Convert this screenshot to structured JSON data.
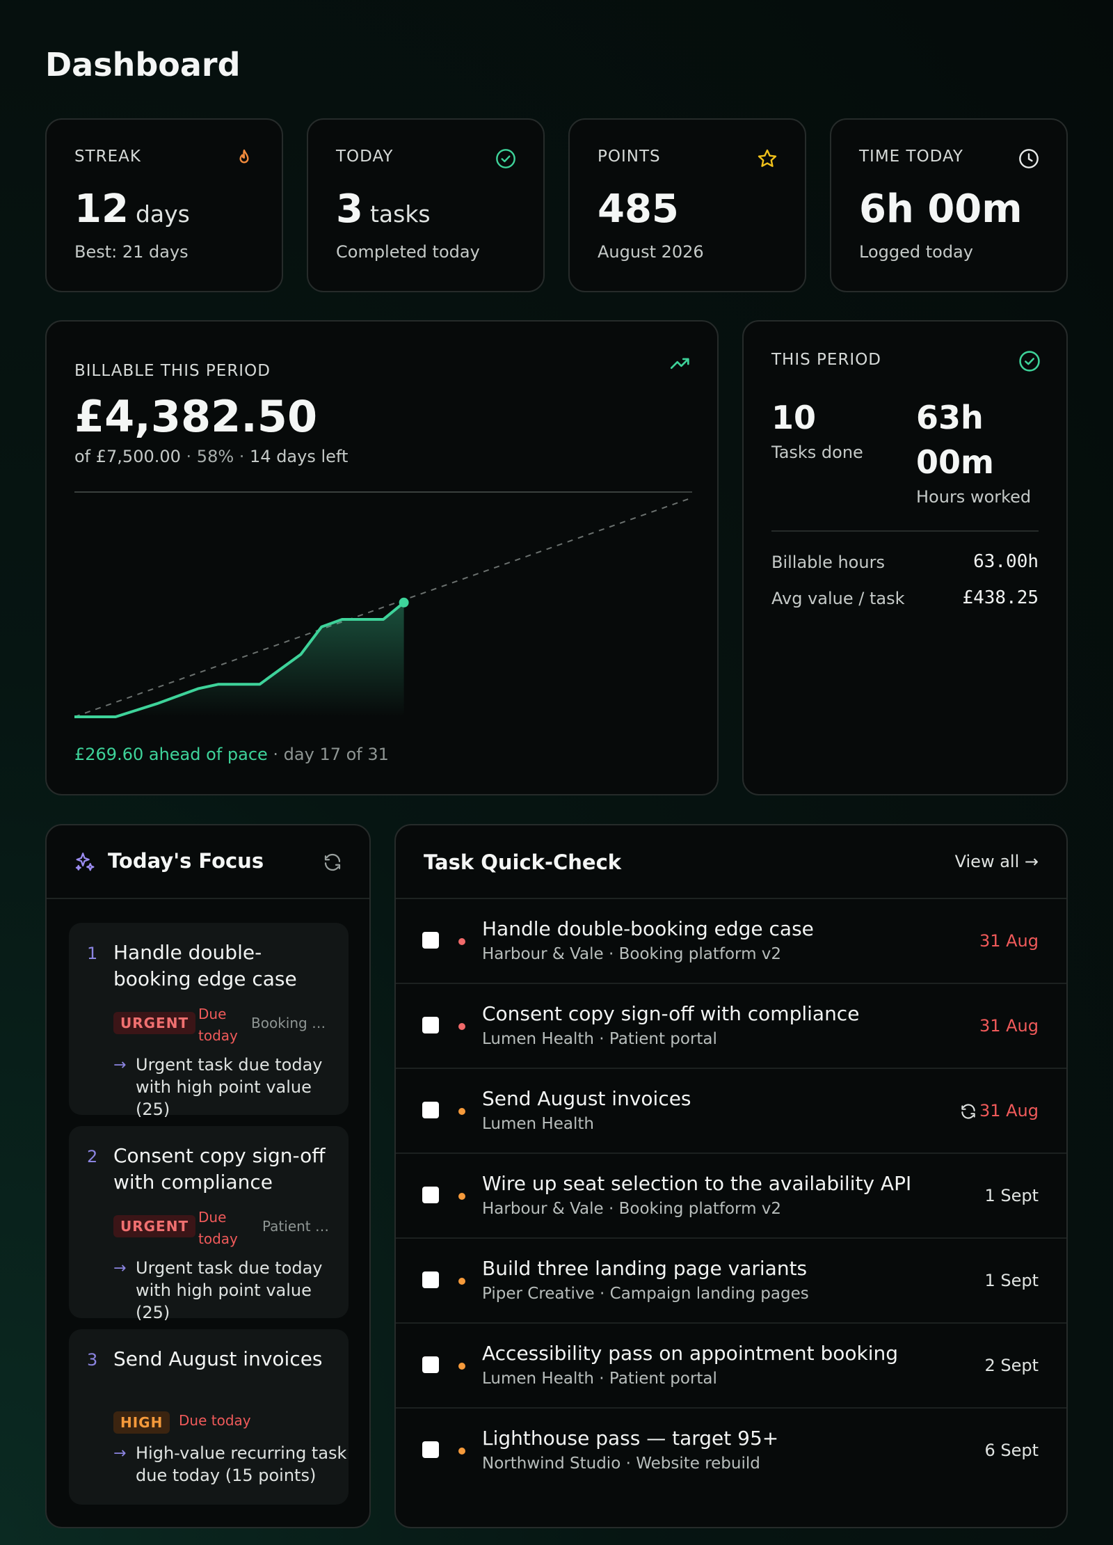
{
  "page": {
    "title": "Dashboard"
  },
  "stats": [
    {
      "label": "STREAK",
      "value": "12",
      "unit": "days",
      "sub": "Best: 21 days",
      "icon": "flame-icon",
      "icon_color": "#f08a3c"
    },
    {
      "label": "TODAY",
      "value": "3",
      "unit": "tasks",
      "sub": "Completed today",
      "icon": "check-circle-icon",
      "icon_color": "#3ed39a"
    },
    {
      "label": "POINTS",
      "value": "485",
      "unit": "",
      "sub": "August 2026",
      "icon": "star-icon",
      "icon_color": "#f2c21b"
    },
    {
      "label": "TIME TODAY",
      "value": "6h 00m",
      "unit": "",
      "sub": "Logged today",
      "icon": "clock-icon",
      "icon_color": "#e8ebea"
    }
  ],
  "billable": {
    "label": "BILLABLE THIS PERIOD",
    "amount": "£4,382.50",
    "target_text": "of £7,500.00",
    "sep1": " · ",
    "percent_text": "58%",
    "sep2": " · ",
    "days_left_text": "14 days left",
    "ahead_text": "£269.60 ahead of pace",
    "day_text": " · day 17 of 31",
    "icon": "trending-up-icon",
    "accent": "#3ed39a"
  },
  "chart_data": {
    "type": "line",
    "x": [
      1,
      3,
      5,
      7,
      8,
      9,
      10,
      11,
      12,
      13,
      14,
      15,
      16,
      17
    ],
    "values": [
      0,
      0,
      350,
      750,
      870,
      870,
      870,
      1270,
      1670,
      2400,
      2600,
      2600,
      2600,
      3050
    ],
    "pace_line": {
      "from_day": 1,
      "to_day": 31,
      "from_value": 0,
      "to_value": 5850
    },
    "xlim": [
      1,
      31
    ],
    "ylim": [
      0,
      6000
    ],
    "grid": false,
    "series_color": "#3ed39a"
  },
  "period": {
    "label": "THIS PERIOD",
    "icon": "check-circle-icon",
    "tasks_done_value": "10",
    "tasks_done_label": "Tasks done",
    "hours_value_line1": "63h",
    "hours_value_line2": "00m",
    "hours_label": "Hours worked",
    "billable_hours_label": "Billable hours",
    "billable_hours_value": "63.00h",
    "avg_value_label": "Avg value / task",
    "avg_value_value": "£438.25"
  },
  "focus": {
    "title": "Today's Focus",
    "items": [
      {
        "index": "1",
        "title": "Handle double-booking edge case",
        "priority": "URGENT",
        "due_line1": "Due",
        "due_line2": "today",
        "project": "Booking pl...",
        "reason": "Urgent task due today with high point value (25)"
      },
      {
        "index": "2",
        "title": "Consent copy sign-off with compliance",
        "priority": "URGENT",
        "due_line1": "Due",
        "due_line2": "today",
        "project": "Patient p...",
        "reason": "Urgent task due today with high point value (25)"
      },
      {
        "index": "3",
        "title": "Send August invoices",
        "priority": "HIGH",
        "due_line1": "Due today",
        "due_line2": "",
        "project": "",
        "reason": "High-value recurring task due today (15 points)"
      }
    ]
  },
  "tasks": {
    "title": "Task Quick-Check",
    "view_all": "View all →",
    "rows": [
      {
        "title": "Handle double-booking edge case",
        "sub": "Harbour & Vale · Booking platform v2",
        "date": "31 Aug",
        "dot_color": "#f06a6a",
        "date_color": "#f05a5a",
        "recurring": false
      },
      {
        "title": "Consent copy sign-off with compliance",
        "sub": "Lumen Health · Patient portal",
        "date": "31 Aug",
        "dot_color": "#f06a6a",
        "date_color": "#f05a5a",
        "recurring": false
      },
      {
        "title": "Send August invoices",
        "sub": "Lumen Health",
        "date": "31 Aug",
        "dot_color": "#f59a3b",
        "date_color": "#f05a5a",
        "recurring": true
      },
      {
        "title": "Wire up seat selection to the availability API",
        "sub": "Harbour & Vale · Booking platform v2",
        "date": "1 Sept",
        "dot_color": "#f59a3b",
        "date_color": "#dfe3e1",
        "recurring": false
      },
      {
        "title": "Build three landing page variants",
        "sub": "Piper Creative · Campaign landing pages",
        "date": "1 Sept",
        "dot_color": "#f59a3b",
        "date_color": "#dfe3e1",
        "recurring": false
      },
      {
        "title": "Accessibility pass on appointment booking",
        "sub": "Lumen Health · Patient portal",
        "date": "2 Sept",
        "dot_color": "#f59a3b",
        "date_color": "#dfe3e1",
        "recurring": false
      },
      {
        "title": "Lighthouse pass — target 95+",
        "sub": "Northwind Studio · Website rebuild",
        "date": "6 Sept",
        "dot_color": "#f59a3b",
        "date_color": "#dfe3e1",
        "recurring": false
      }
    ]
  }
}
